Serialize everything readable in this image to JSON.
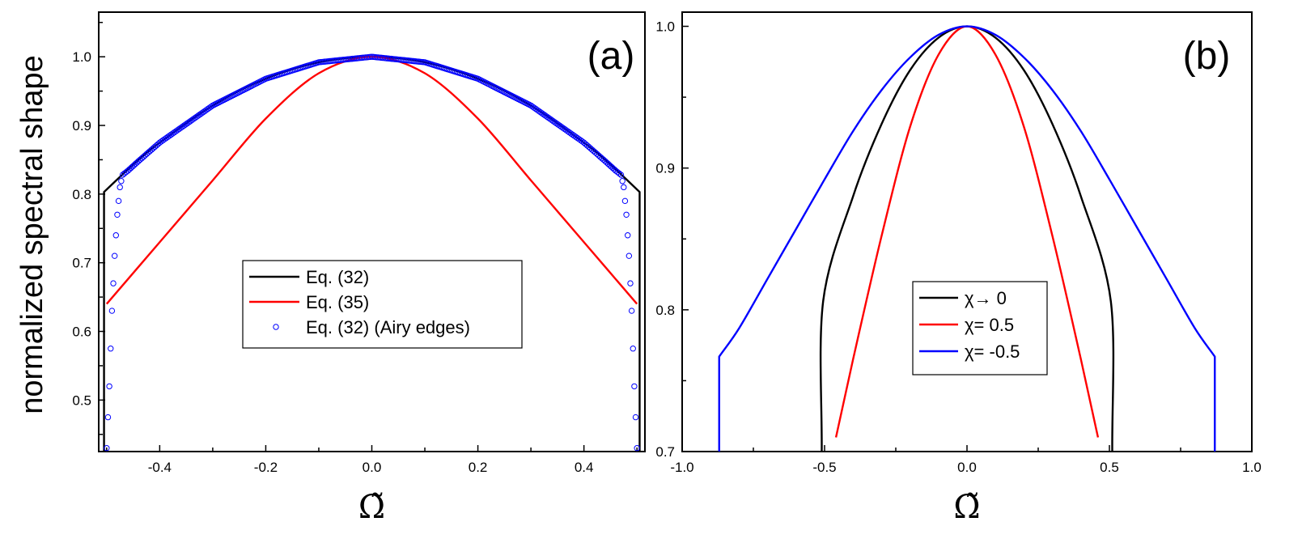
{
  "ylabel": "normalized spectral shape",
  "chart_data": [
    {
      "type": "line",
      "panel_label": "(a)",
      "xlabel": "Ω̃",
      "ylabel": "normalized spectral shape",
      "xlim": [
        -0.515,
        0.515
      ],
      "ylim": [
        0.425,
        1.065
      ],
      "xticks": [
        -0.4,
        -0.2,
        0.0,
        0.2,
        0.4
      ],
      "xtick_labels": [
        "-0.4",
        "-0.2",
        "0.0",
        "0.2",
        "0.4"
      ],
      "yticks": [
        0.5,
        0.6,
        0.7,
        0.8,
        0.9,
        1.0
      ],
      "ytick_labels": [
        "0.5",
        "0.6",
        "0.7",
        "0.8",
        "0.9",
        "1.0"
      ],
      "legend_position": "center",
      "series": [
        {
          "name": "Eq. (32)",
          "color": "#000000",
          "style": "line",
          "x": [
            -0.505,
            -0.505,
            -0.45,
            -0.4,
            -0.3,
            -0.2,
            -0.1,
            0.0,
            0.1,
            0.2,
            0.3,
            0.4,
            0.45,
            0.505,
            0.505
          ],
          "y": [
            0.425,
            0.803,
            0.843,
            0.875,
            0.929,
            0.968,
            0.992,
            1.0,
            0.992,
            0.968,
            0.929,
            0.875,
            0.843,
            0.803,
            0.425
          ]
        },
        {
          "name": "Eq. (35)",
          "color": "#ff0000",
          "style": "line",
          "x": [
            -0.5,
            -0.4,
            -0.3,
            -0.2,
            -0.1,
            0.0,
            0.1,
            0.2,
            0.3,
            0.4,
            0.5
          ],
          "y": [
            0.64,
            0.73,
            0.82,
            0.91,
            0.976,
            1.0,
            0.976,
            0.91,
            0.82,
            0.73,
            0.64
          ]
        },
        {
          "name": "Eq. (32) (Airy edges)",
          "color": "#0000ff",
          "style": "markers",
          "x": [
            -0.5,
            -0.495,
            -0.49,
            -0.485,
            -0.48,
            -0.475,
            -0.47,
            -0.46,
            -0.44,
            -0.4,
            -0.3,
            -0.2,
            -0.1,
            0.0,
            0.1,
            0.2,
            0.3,
            0.4,
            0.44,
            0.46,
            0.47,
            0.475,
            0.48,
            0.485,
            0.49,
            0.495,
            0.5
          ],
          "y": [
            0.43,
            0.52,
            0.63,
            0.71,
            0.77,
            0.81,
            0.828,
            0.834,
            0.848,
            0.875,
            0.929,
            0.968,
            0.992,
            1.0,
            0.992,
            0.968,
            0.929,
            0.875,
            0.848,
            0.834,
            0.828,
            0.81,
            0.77,
            0.71,
            0.63,
            0.52,
            0.43
          ]
        }
      ]
    },
    {
      "type": "line",
      "panel_label": "(b)",
      "xlabel": "Ω̃",
      "ylabel": "",
      "xlim": [
        -1.0,
        1.0
      ],
      "ylim": [
        0.7,
        1.01
      ],
      "xticks": [
        -1.0,
        -0.5,
        0.0,
        0.5,
        1.0
      ],
      "xtick_labels": [
        "-1.0",
        "-0.5",
        "0.0",
        "0.5",
        "1.0"
      ],
      "yticks": [
        0.7,
        0.8,
        0.9,
        1.0
      ],
      "ytick_labels": [
        "0.7",
        "0.8",
        "0.9",
        "1.0"
      ],
      "legend_position": "center",
      "series": [
        {
          "name": "χ→ 0",
          "color": "#000000",
          "style": "line",
          "x": [
            -0.51,
            -0.505,
            -0.4,
            -0.3,
            -0.2,
            -0.1,
            0.0,
            0.1,
            0.2,
            0.3,
            0.4,
            0.505,
            0.51
          ],
          "y": [
            0.7,
            0.806,
            0.88,
            0.931,
            0.969,
            0.992,
            1.0,
            0.992,
            0.969,
            0.931,
            0.88,
            0.806,
            0.7
          ]
        },
        {
          "name": "χ= 0.5",
          "color": "#ff0000",
          "style": "line",
          "x": [
            -0.46,
            -0.4,
            -0.3,
            -0.2,
            -0.1,
            0.0,
            0.1,
            0.2,
            0.3,
            0.4,
            0.46
          ],
          "y": [
            0.71,
            0.765,
            0.852,
            0.929,
            0.98,
            1.0,
            0.98,
            0.929,
            0.852,
            0.765,
            0.71
          ]
        },
        {
          "name": "χ= -0.5",
          "color": "#0000ff",
          "style": "line",
          "x": [
            -0.87,
            -0.87,
            -0.8,
            -0.7,
            -0.6,
            -0.5,
            -0.4,
            -0.3,
            -0.2,
            -0.1,
            0.0,
            0.1,
            0.2,
            0.3,
            0.4,
            0.5,
            0.6,
            0.7,
            0.8,
            0.87,
            0.87
          ],
          "y": [
            0.7,
            0.767,
            0.787,
            0.822,
            0.857,
            0.892,
            0.926,
            0.955,
            0.978,
            0.994,
            1.0,
            0.994,
            0.978,
            0.955,
            0.926,
            0.892,
            0.857,
            0.822,
            0.787,
            0.767,
            0.7
          ]
        }
      ]
    }
  ]
}
